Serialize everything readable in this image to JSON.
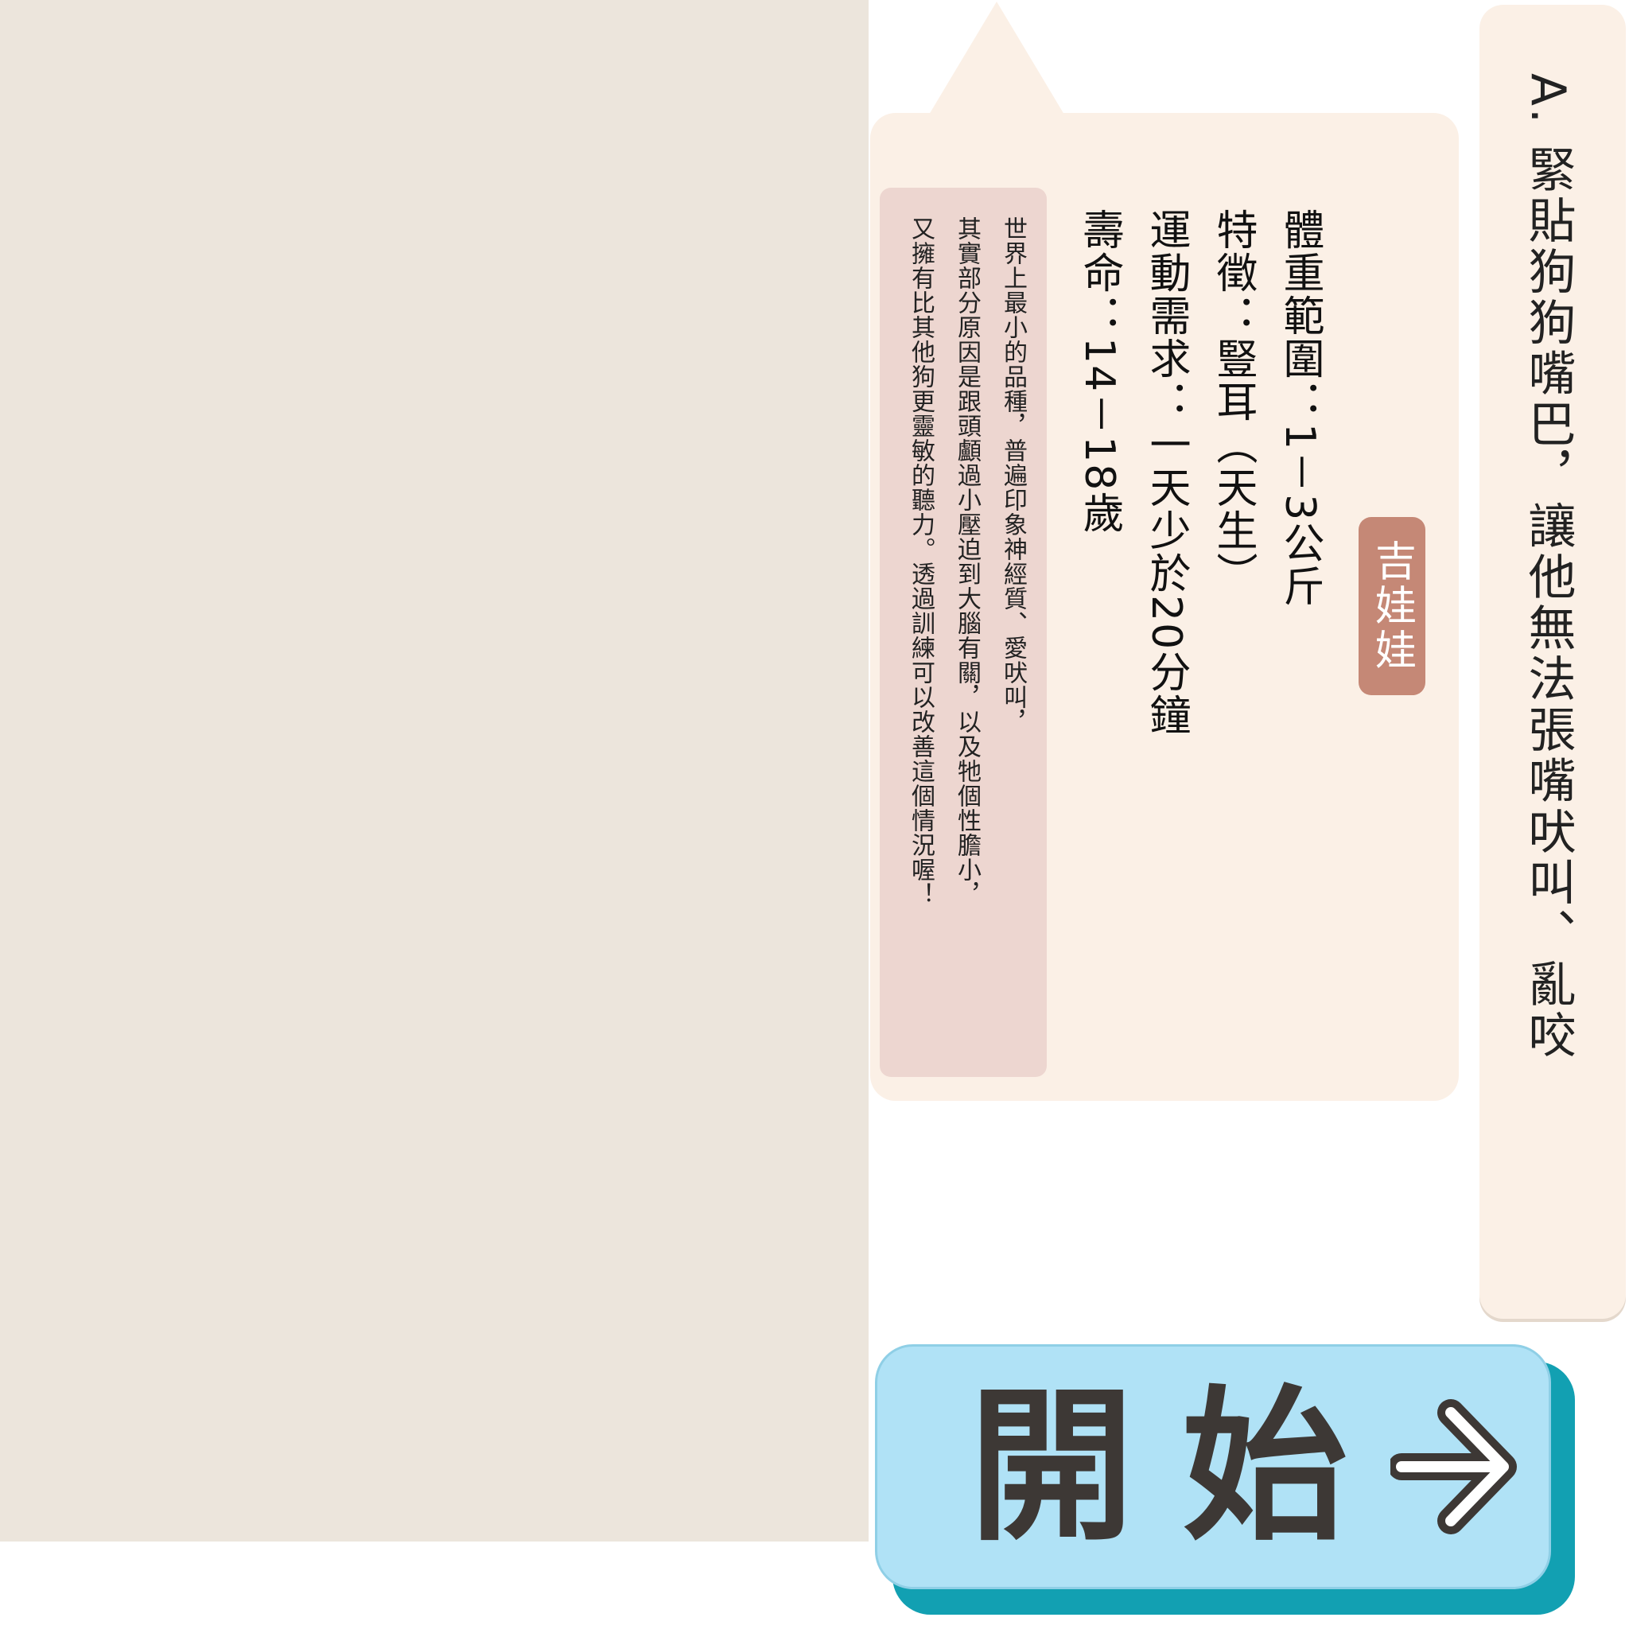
{
  "question": {
    "answer_option": "A. 緊貼狗狗嘴巴，讓他無法張嘴吠叫、亂咬"
  },
  "breed_card": {
    "breed_name": "吉娃娃",
    "stats": [
      "體重範圍：1－3公斤",
      "特徵：豎耳（天生）",
      "運動需求：一天少於20分鐘",
      "壽命：14－18歲"
    ],
    "description_lines": [
      "世界上最小的品種，普遍印象神經質、愛吠叫，",
      "其實部分原因是跟頭顱過小壓迫到大腦有關，以及牠個性膽小，",
      "又擁有比其他狗更靈敏的聽力。透過訓練可以改善這個情況喔！"
    ]
  },
  "start_button": {
    "label": "開始",
    "icon": "arrow-right-icon"
  },
  "colors": {
    "panel_bg": "#ece5dc",
    "card_bg": "#fbf0e6",
    "tag_bg": "#c58876",
    "desc_bg": "#edd6d0",
    "button_bg": "#b0e2f6",
    "button_shadow": "#12a0b2"
  }
}
